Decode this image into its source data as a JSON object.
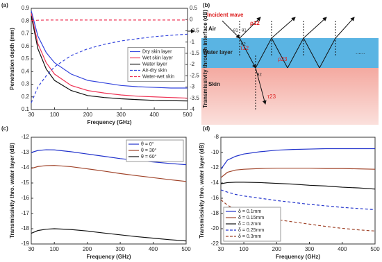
{
  "chart_data": [
    {
      "type": "line",
      "label": "(a)",
      "xlabel": "Frequency (GHz)",
      "ylabel": "Penetration depth (mm)",
      "y2label": "Transmissivity through interface (dB)",
      "x": [
        30,
        50,
        75,
        100,
        150,
        200,
        250,
        300,
        350,
        400,
        450,
        500
      ],
      "xlim": [
        30,
        500
      ],
      "xticks": [
        30,
        100,
        200,
        300,
        400,
        500
      ],
      "ylim": [
        0.1,
        0.9
      ],
      "yticks": [
        0.1,
        0.2,
        0.3,
        0.4,
        0.5,
        0.6,
        0.7,
        0.8,
        0.9
      ],
      "y2lim": [
        -4,
        0.5
      ],
      "y2ticks": [
        0.5,
        0,
        -0.5,
        -1,
        -1.5,
        -2,
        -2.5,
        -3,
        -3.5,
        -4
      ],
      "legend": "right",
      "series": [
        {
          "name": "Dry skin layer",
          "color": "#3344dd",
          "linestyle": "solid",
          "values": [
            0.88,
            0.68,
            0.55,
            0.47,
            0.38,
            0.33,
            0.31,
            0.29,
            0.28,
            0.275,
            0.27,
            0.27
          ]
        },
        {
          "name": "Wet skin layer",
          "color": "#ee3355",
          "linestyle": "solid",
          "values": [
            0.86,
            0.62,
            0.47,
            0.38,
            0.29,
            0.25,
            0.23,
            0.215,
            0.205,
            0.2,
            0.195,
            0.19
          ]
        },
        {
          "name": "Water layer",
          "color": "#111111",
          "linestyle": "solid",
          "values": [
            0.84,
            0.58,
            0.42,
            0.33,
            0.25,
            0.21,
            0.195,
            0.185,
            0.178,
            0.172,
            0.17,
            0.168
          ]
        },
        {
          "name": "Air-dry skin",
          "color": "#3344dd",
          "linestyle": "dashed",
          "axis": "y2",
          "values": [
            -3.7,
            -3.0,
            -2.5,
            -2.1,
            -1.6,
            -1.3,
            -1.1,
            -0.95,
            -0.85,
            -0.76,
            -0.7,
            -0.65
          ]
        },
        {
          "name": "Water-wet skin",
          "color": "#ee3355",
          "linestyle": "dashed",
          "axis": "y2",
          "values": [
            -0.05,
            -0.03,
            -0.02,
            -0.02,
            -0.02,
            -0.02,
            -0.02,
            -0.02,
            -0.02,
            -0.02,
            -0.02,
            -0.02
          ]
        }
      ]
    },
    {
      "type": "line",
      "label": "(c)",
      "xlabel": "Frequency (GHz)",
      "ylabel": "Transmissivity thro. water layer (dB)",
      "x": [
        30,
        50,
        75,
        100,
        150,
        200,
        250,
        300,
        350,
        400,
        450,
        500
      ],
      "xlim": [
        30,
        500
      ],
      "xticks": [
        30,
        100,
        200,
        300,
        400,
        500
      ],
      "ylim": [
        -19,
        -12
      ],
      "yticks": [
        -12,
        -13,
        -14,
        -15,
        -16,
        -17,
        -18,
        -19
      ],
      "legend": "upper right",
      "series": [
        {
          "name": "θ = 0°",
          "color": "#2233cc",
          "linestyle": "solid",
          "values": [
            -13.0,
            -12.87,
            -12.82,
            -12.83,
            -12.95,
            -13.1,
            -13.25,
            -13.4,
            -13.52,
            -13.62,
            -13.72,
            -13.8
          ]
        },
        {
          "name": "θ = 30°",
          "color": "#a0442a",
          "linestyle": "solid",
          "values": [
            -14.05,
            -13.92,
            -13.86,
            -13.85,
            -13.93,
            -14.07,
            -14.22,
            -14.38,
            -14.52,
            -14.65,
            -14.78,
            -14.9
          ]
        },
        {
          "name": "θ = 60°",
          "color": "#111111",
          "linestyle": "solid",
          "values": [
            -18.3,
            -18.12,
            -18.03,
            -18.0,
            -18.05,
            -18.15,
            -18.28,
            -18.4,
            -18.52,
            -18.62,
            -18.72,
            -18.8
          ]
        }
      ]
    },
    {
      "type": "line",
      "label": "(d)",
      "xlabel": "Frequency (GHz)",
      "ylabel": "Transmissivity thro. water layer (dB)",
      "x": [
        30,
        50,
        75,
        100,
        150,
        200,
        250,
        300,
        350,
        400,
        450,
        500
      ],
      "xlim": [
        30,
        500
      ],
      "xticks": [
        30,
        100,
        200,
        300,
        400,
        500
      ],
      "ylim": [
        -22,
        -8
      ],
      "yticks": [
        -8,
        -10,
        -12,
        -14,
        -16,
        -18,
        -20,
        -22
      ],
      "legend": "lower left",
      "series": [
        {
          "name": "δ = 0.1mm",
          "color": "#2233cc",
          "linestyle": "solid",
          "values": [
            -12.2,
            -11.0,
            -10.5,
            -10.2,
            -9.9,
            -9.7,
            -9.6,
            -9.55,
            -9.5,
            -9.5,
            -9.5,
            -9.5
          ]
        },
        {
          "name": "δ = 0.15mm",
          "color": "#a0442a",
          "linestyle": "solid",
          "values": [
            -13.3,
            -12.6,
            -12.3,
            -12.2,
            -12.1,
            -12.05,
            -12.05,
            -12.05,
            -12.1,
            -12.1,
            -12.15,
            -12.2
          ]
        },
        {
          "name": "δ = 0.2mm",
          "color": "#111111",
          "linestyle": "solid",
          "values": [
            -14.1,
            -13.95,
            -13.9,
            -13.9,
            -13.95,
            -14.05,
            -14.15,
            -14.3,
            -14.4,
            -14.55,
            -14.65,
            -14.8
          ]
        },
        {
          "name": "δ = 0.25mm",
          "color": "#2233cc",
          "linestyle": "dashed",
          "values": [
            -14.9,
            -15.2,
            -15.5,
            -15.7,
            -16.0,
            -16.3,
            -16.55,
            -16.8,
            -17.0,
            -17.2,
            -17.35,
            -17.5
          ]
        },
        {
          "name": "δ = 0.3mm",
          "color": "#a0442a",
          "linestyle": "dashed",
          "values": [
            -16.2,
            -16.9,
            -17.5,
            -17.9,
            -18.4,
            -18.8,
            -19.1,
            -19.4,
            -19.7,
            -19.95,
            -20.15,
            -20.3
          ]
        }
      ]
    }
  ],
  "diagram": {
    "label": "(b)",
    "incident": "Incident wave",
    "layers": [
      "Air",
      "Water layer",
      "Skin"
    ],
    "coefficients": [
      "ρ12",
      "τ12",
      "ρ23",
      "τ23"
    ],
    "angles": [
      "θ1",
      "θ2"
    ],
    "more": "......"
  }
}
